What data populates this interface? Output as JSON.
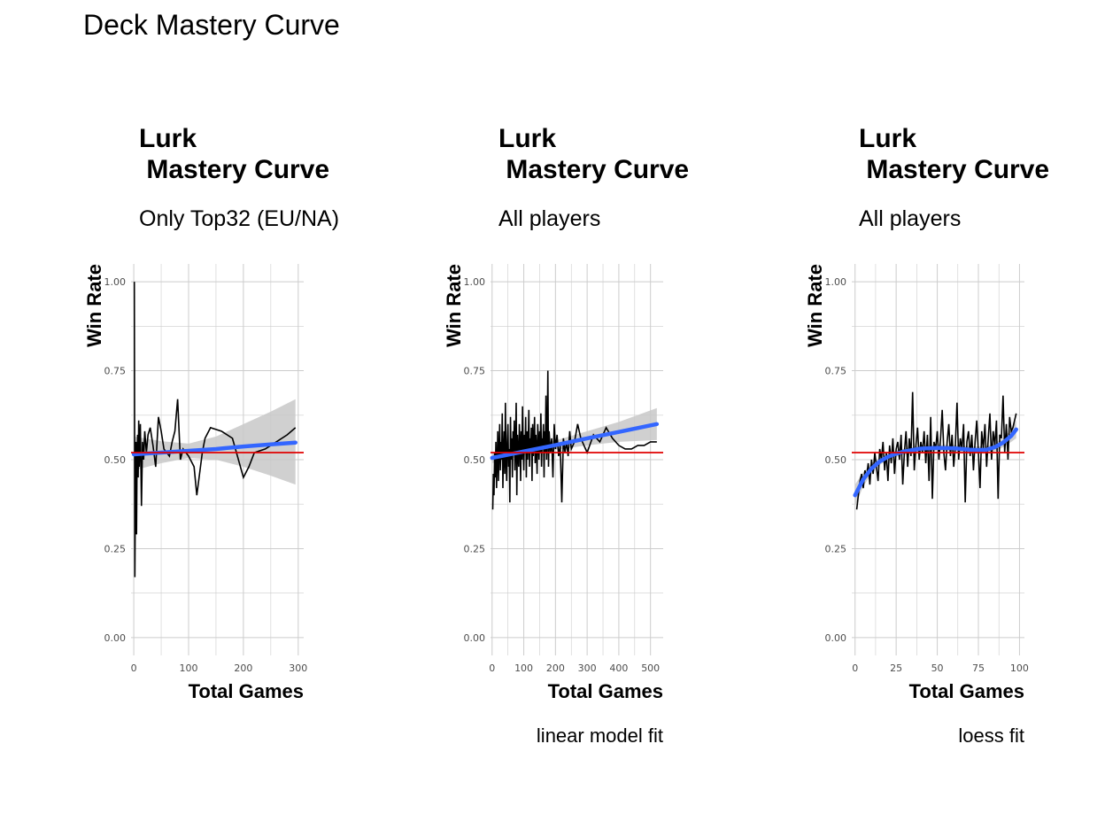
{
  "title": "Deck Mastery Curve",
  "colors": {
    "grid": "#cccccc",
    "raw": "#000000",
    "fit": "#3366ff",
    "band": "#c8c8c8",
    "ref": "#e00000"
  },
  "chart_data": [
    {
      "type": "line",
      "title_line1": "Lurk",
      "title_line2": " Mastery Curve",
      "subtitle": "Only Top32 (EU/NA)",
      "xlabel": "Total Games",
      "ylabel": "Win Rate",
      "caption": "",
      "xlim": [
        -5,
        310
      ],
      "ylim": [
        -0.05,
        1.05
      ],
      "x_ticks": [
        0,
        100,
        200,
        300
      ],
      "y_ticks": [
        0.0,
        0.25,
        0.5,
        0.75,
        1.0
      ],
      "y_tick_labels": [
        "0.00",
        "0.25",
        "0.50",
        "0.75",
        "1.00"
      ],
      "reference_line": 0.52,
      "series_raw": {
        "x": [
          1,
          2,
          3,
          4,
          5,
          6,
          7,
          8,
          9,
          10,
          12,
          14,
          16,
          18,
          20,
          23,
          26,
          30,
          35,
          40,
          45,
          50,
          55,
          60,
          65,
          70,
          75,
          80,
          85,
          90,
          100,
          110,
          115,
          120,
          125,
          130,
          140,
          160,
          180,
          200,
          210,
          220,
          240,
          260,
          280,
          295
        ],
        "y": [
          1.0,
          0.17,
          0.44,
          0.55,
          0.29,
          0.5,
          0.57,
          0.45,
          0.61,
          0.48,
          0.6,
          0.37,
          0.55,
          0.5,
          0.58,
          0.52,
          0.57,
          0.59,
          0.54,
          0.48,
          0.62,
          0.58,
          0.53,
          0.52,
          0.51,
          0.55,
          0.58,
          0.67,
          0.5,
          0.53,
          0.51,
          0.48,
          0.4,
          0.46,
          0.52,
          0.56,
          0.59,
          0.58,
          0.56,
          0.45,
          0.48,
          0.52,
          0.53,
          0.55,
          0.57,
          0.59
        ]
      },
      "fit": {
        "x": [
          0,
          50,
          100,
          150,
          200,
          250,
          295
        ],
        "y": [
          0.515,
          0.52,
          0.525,
          0.53,
          0.537,
          0.543,
          0.548
        ],
        "lower": [
          0.47,
          0.49,
          0.505,
          0.5,
          0.48,
          0.455,
          0.43
        ],
        "upper": [
          0.565,
          0.552,
          0.545,
          0.565,
          0.6,
          0.635,
          0.67
        ]
      }
    },
    {
      "type": "line",
      "title_line1": "Lurk",
      "title_line2": " Mastery Curve",
      "subtitle": "All players",
      "xlabel": "Total Games",
      "ylabel": "Win Rate",
      "caption": "linear model fit",
      "xlim": [
        -5,
        540
      ],
      "ylim": [
        -0.05,
        1.05
      ],
      "x_ticks": [
        0,
        100,
        200,
        300,
        400,
        500
      ],
      "y_ticks": [
        0.0,
        0.25,
        0.5,
        0.75,
        1.0
      ],
      "y_tick_labels": [
        "0.00",
        "0.25",
        "0.50",
        "0.75",
        "1.00"
      ],
      "reference_line": 0.52,
      "series_raw": {
        "x": [
          2,
          4,
          6,
          8,
          10,
          12,
          14,
          16,
          18,
          20,
          22,
          24,
          26,
          28,
          30,
          32,
          34,
          36,
          38,
          40,
          42,
          44,
          46,
          48,
          50,
          52,
          54,
          56,
          58,
          60,
          62,
          64,
          66,
          68,
          70,
          72,
          74,
          76,
          78,
          80,
          82,
          84,
          86,
          88,
          90,
          92,
          94,
          96,
          98,
          100,
          102,
          104,
          106,
          108,
          110,
          112,
          114,
          116,
          118,
          120,
          122,
          124,
          126,
          128,
          130,
          132,
          134,
          136,
          138,
          140,
          142,
          144,
          146,
          148,
          150,
          152,
          154,
          156,
          158,
          160,
          162,
          164,
          166,
          168,
          170,
          172,
          174,
          176,
          178,
          180,
          184,
          188,
          192,
          196,
          200,
          205,
          210,
          215,
          220,
          225,
          230,
          235,
          240,
          245,
          250,
          260,
          270,
          280,
          300,
          320,
          340,
          360,
          380,
          400,
          420,
          440,
          460,
          480,
          500,
          520
        ],
        "y": [
          0.36,
          0.46,
          0.4,
          0.52,
          0.45,
          0.55,
          0.42,
          0.5,
          0.58,
          0.44,
          0.53,
          0.6,
          0.47,
          0.55,
          0.5,
          0.63,
          0.42,
          0.52,
          0.58,
          0.46,
          0.66,
          0.5,
          0.44,
          0.55,
          0.6,
          0.48,
          0.53,
          0.38,
          0.62,
          0.5,
          0.56,
          0.45,
          0.58,
          0.52,
          0.61,
          0.47,
          0.54,
          0.66,
          0.4,
          0.57,
          0.52,
          0.48,
          0.6,
          0.55,
          0.44,
          0.58,
          0.5,
          0.65,
          0.53,
          0.47,
          0.57,
          0.52,
          0.62,
          0.45,
          0.58,
          0.5,
          0.55,
          0.64,
          0.48,
          0.56,
          0.53,
          0.59,
          0.44,
          0.6,
          0.51,
          0.55,
          0.62,
          0.49,
          0.57,
          0.53,
          0.46,
          0.6,
          0.55,
          0.5,
          0.58,
          0.52,
          0.63,
          0.48,
          0.56,
          0.54,
          0.6,
          0.45,
          0.58,
          0.52,
          0.68,
          0.5,
          0.56,
          0.75,
          0.48,
          0.58,
          0.52,
          0.56,
          0.45,
          0.6,
          0.53,
          0.57,
          0.51,
          0.54,
          0.38,
          0.56,
          0.52,
          0.55,
          0.51,
          0.58,
          0.53,
          0.55,
          0.6,
          0.56,
          0.52,
          0.57,
          0.55,
          0.59,
          0.56,
          0.54,
          0.53,
          0.53,
          0.54,
          0.54,
          0.55,
          0.55
        ],
        "note": ""
      },
      "fit": {
        "x": [
          0,
          100,
          200,
          300,
          400,
          520
        ],
        "y": [
          0.505,
          0.523,
          0.541,
          0.56,
          0.578,
          0.6
        ],
        "lower": [
          0.49,
          0.512,
          0.528,
          0.54,
          0.55,
          0.555
        ],
        "upper": [
          0.52,
          0.534,
          0.554,
          0.58,
          0.606,
          0.645
        ]
      }
    },
    {
      "type": "line",
      "title_line1": "Lurk",
      "title_line2": " Mastery Curve",
      "subtitle": "All players",
      "xlabel": "Total Games",
      "ylabel": "Win Rate",
      "caption": "loess fit",
      "xlim": [
        -2,
        103
      ],
      "ylim": [
        -0.05,
        1.05
      ],
      "x_ticks": [
        0,
        25,
        50,
        75,
        100
      ],
      "y_ticks": [
        0.0,
        0.25,
        0.5,
        0.75,
        1.0
      ],
      "y_tick_labels": [
        "0.00",
        "0.25",
        "0.50",
        "0.75",
        "1.00"
      ],
      "reference_line": 0.52,
      "series_raw": {
        "x": [
          1,
          2,
          3,
          4,
          5,
          6,
          7,
          8,
          9,
          10,
          11,
          12,
          13,
          14,
          15,
          16,
          17,
          18,
          19,
          20,
          21,
          22,
          23,
          24,
          25,
          26,
          27,
          28,
          29,
          30,
          31,
          32,
          33,
          34,
          35,
          36,
          37,
          38,
          39,
          40,
          41,
          42,
          43,
          44,
          45,
          46,
          47,
          48,
          49,
          50,
          51,
          52,
          53,
          54,
          55,
          56,
          57,
          58,
          59,
          60,
          61,
          62,
          63,
          64,
          65,
          66,
          67,
          68,
          69,
          70,
          71,
          72,
          73,
          74,
          75,
          76,
          77,
          78,
          79,
          80,
          81,
          82,
          83,
          84,
          85,
          86,
          87,
          88,
          89,
          90,
          91,
          92,
          93,
          94,
          95,
          96,
          97,
          98
        ],
        "y": [
          0.36,
          0.4,
          0.44,
          0.46,
          0.42,
          0.47,
          0.45,
          0.49,
          0.43,
          0.5,
          0.46,
          0.52,
          0.48,
          0.44,
          0.53,
          0.5,
          0.55,
          0.47,
          0.52,
          0.44,
          0.54,
          0.49,
          0.56,
          0.46,
          0.53,
          0.55,
          0.5,
          0.57,
          0.43,
          0.52,
          0.58,
          0.48,
          0.56,
          0.51,
          0.69,
          0.47,
          0.54,
          0.59,
          0.5,
          0.55,
          0.52,
          0.58,
          0.49,
          0.57,
          0.44,
          0.62,
          0.39,
          0.55,
          0.53,
          0.58,
          0.5,
          0.56,
          0.64,
          0.52,
          0.47,
          0.55,
          0.6,
          0.51,
          0.57,
          0.48,
          0.54,
          0.66,
          0.5,
          0.56,
          0.53,
          0.6,
          0.38,
          0.55,
          0.58,
          0.51,
          0.57,
          0.47,
          0.55,
          0.61,
          0.52,
          0.42,
          0.58,
          0.53,
          0.6,
          0.48,
          0.56,
          0.63,
          0.5,
          0.58,
          0.54,
          0.61,
          0.39,
          0.57,
          0.56,
          0.68,
          0.52,
          0.6,
          0.5,
          0.62,
          0.58,
          0.59,
          0.61,
          0.63
        ]
      },
      "fit": {
        "x": [
          0,
          5,
          10,
          15,
          20,
          25,
          30,
          40,
          50,
          60,
          70,
          75,
          80,
          85,
          90,
          95,
          98
        ],
        "y": [
          0.4,
          0.445,
          0.475,
          0.495,
          0.508,
          0.517,
          0.523,
          0.531,
          0.533,
          0.532,
          0.528,
          0.527,
          0.528,
          0.535,
          0.548,
          0.567,
          0.585
        ],
        "lower": [
          0.37,
          0.425,
          0.46,
          0.485,
          0.5,
          0.508,
          0.515,
          0.523,
          0.525,
          0.523,
          0.518,
          0.517,
          0.518,
          0.523,
          0.535,
          0.55,
          0.56
        ],
        "upper": [
          0.43,
          0.465,
          0.49,
          0.505,
          0.516,
          0.526,
          0.531,
          0.539,
          0.541,
          0.541,
          0.538,
          0.537,
          0.538,
          0.547,
          0.561,
          0.584,
          0.61
        ]
      }
    }
  ]
}
